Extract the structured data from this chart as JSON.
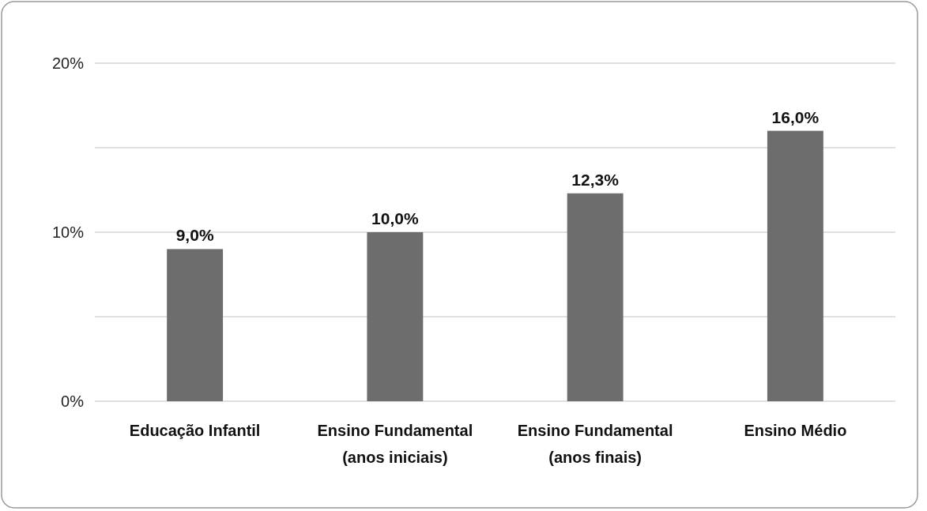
{
  "chart_data": {
    "type": "bar",
    "categories": [
      "Educação Infantil",
      "Ensino Fundamental\n(anos iniciais)",
      "Ensino Fundamental\n(anos finais)",
      "Ensino Médio"
    ],
    "values": [
      9.0,
      10.0,
      12.3,
      16.0
    ],
    "value_labels": [
      "9,0%",
      "10,0%",
      "12,3%",
      "16,0%"
    ],
    "color": "#6d6d6d",
    "ylim": [
      0,
      20
    ],
    "yticks": [
      {
        "value": 0,
        "label": "0%"
      },
      {
        "value": 5,
        "label": null
      },
      {
        "value": 10,
        "label": "10%"
      },
      {
        "value": 15,
        "label": null
      },
      {
        "value": 20,
        "label": "20%"
      }
    ],
    "grid": "y"
  }
}
